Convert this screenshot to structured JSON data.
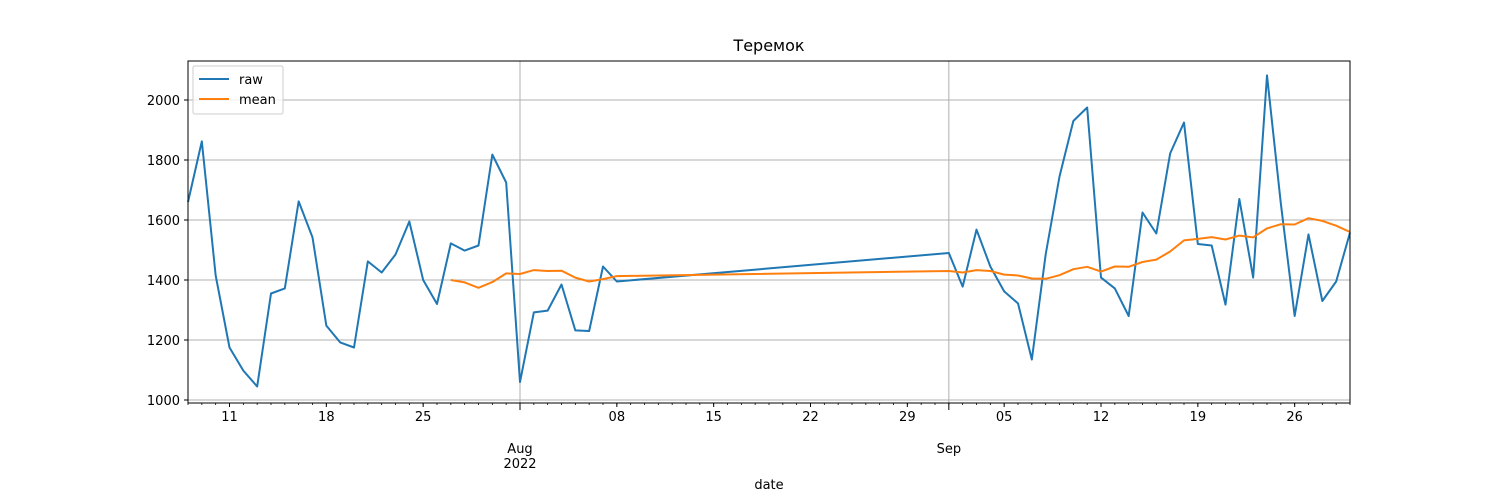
{
  "chart_data": {
    "type": "line",
    "title": "Теремок",
    "xlabel": "date",
    "ylabel": "",
    "ylim": [
      990,
      2130
    ],
    "xlim": [
      "2022-07-08",
      "2022-09-30"
    ],
    "grid": true,
    "legend_position": "top-left",
    "x_ticks": [
      {
        "date": "2022-07-11",
        "label": "11",
        "grid": false
      },
      {
        "date": "2022-07-18",
        "label": "18",
        "grid": false
      },
      {
        "date": "2022-07-25",
        "label": "25",
        "grid": false
      },
      {
        "date": "2022-08-01",
        "label": "Aug\n2022",
        "grid": true
      },
      {
        "date": "2022-08-08",
        "label": "08",
        "grid": false
      },
      {
        "date": "2022-08-15",
        "label": "15",
        "grid": false
      },
      {
        "date": "2022-08-22",
        "label": "22",
        "grid": false
      },
      {
        "date": "2022-08-29",
        "label": "29",
        "grid": false
      },
      {
        "date": "2022-09-01",
        "label": "Sep",
        "grid": true
      },
      {
        "date": "2022-09-05",
        "label": "05",
        "grid": false
      },
      {
        "date": "2022-09-12",
        "label": "12",
        "grid": false
      },
      {
        "date": "2022-09-19",
        "label": "19",
        "grid": false
      },
      {
        "date": "2022-09-26",
        "label": "26",
        "grid": false
      }
    ],
    "y_ticks": [
      1000,
      1200,
      1400,
      1600,
      1800,
      2000
    ],
    "series": [
      {
        "name": "raw",
        "color": "#1f77b4",
        "points": [
          [
            "2022-07-08",
            1660
          ],
          [
            "2022-07-09",
            1862
          ],
          [
            "2022-07-10",
            1415
          ],
          [
            "2022-07-11",
            1175
          ],
          [
            "2022-07-12",
            1098
          ],
          [
            "2022-07-13",
            1045
          ],
          [
            "2022-07-14",
            1355
          ],
          [
            "2022-07-15",
            1372
          ],
          [
            "2022-07-16",
            1662
          ],
          [
            "2022-07-17",
            1542
          ],
          [
            "2022-07-18",
            1248
          ],
          [
            "2022-07-19",
            1192
          ],
          [
            "2022-07-20",
            1175
          ],
          [
            "2022-07-21",
            1462
          ],
          [
            "2022-07-22",
            1425
          ],
          [
            "2022-07-23",
            1485
          ],
          [
            "2022-07-24",
            1595
          ],
          [
            "2022-07-25",
            1400
          ],
          [
            "2022-07-26",
            1320
          ],
          [
            "2022-07-27",
            1522
          ],
          [
            "2022-07-28",
            1498
          ],
          [
            "2022-07-29",
            1515
          ],
          [
            "2022-07-30",
            1818
          ],
          [
            "2022-07-31",
            1725
          ],
          [
            "2022-08-01",
            1060
          ],
          [
            "2022-08-02",
            1292
          ],
          [
            "2022-08-03",
            1298
          ],
          [
            "2022-08-04",
            1385
          ],
          [
            "2022-08-05",
            1232
          ],
          [
            "2022-08-06",
            1230
          ],
          [
            "2022-08-07",
            1445
          ],
          [
            "2022-08-08",
            1395
          ],
          [
            "2022-09-01",
            1490
          ],
          [
            "2022-09-02",
            1378
          ],
          [
            "2022-09-03",
            1568
          ],
          [
            "2022-09-04",
            1445
          ],
          [
            "2022-09-05",
            1362
          ],
          [
            "2022-09-06",
            1322
          ],
          [
            "2022-09-07",
            1135
          ],
          [
            "2022-09-08",
            1485
          ],
          [
            "2022-09-09",
            1745
          ],
          [
            "2022-09-10",
            1930
          ],
          [
            "2022-09-11",
            1975
          ],
          [
            "2022-09-12",
            1408
          ],
          [
            "2022-09-13",
            1372
          ],
          [
            "2022-09-14",
            1280
          ],
          [
            "2022-09-15",
            1625
          ],
          [
            "2022-09-16",
            1555
          ],
          [
            "2022-09-17",
            1822
          ],
          [
            "2022-09-18",
            1925
          ],
          [
            "2022-09-19",
            1520
          ],
          [
            "2022-09-20",
            1515
          ],
          [
            "2022-09-21",
            1318
          ],
          [
            "2022-09-22",
            1670
          ],
          [
            "2022-09-23",
            1408
          ],
          [
            "2022-09-24",
            2082
          ],
          [
            "2022-09-25",
            1655
          ],
          [
            "2022-09-26",
            1280
          ],
          [
            "2022-09-27",
            1552
          ],
          [
            "2022-09-28",
            1330
          ],
          [
            "2022-09-29",
            1395
          ],
          [
            "2022-09-30",
            1558
          ]
        ]
      },
      {
        "name": "mean",
        "color": "#ff7f0e",
        "points": [
          [
            "2022-07-27",
            1400
          ],
          [
            "2022-07-28",
            1392
          ],
          [
            "2022-07-29",
            1374
          ],
          [
            "2022-07-30",
            1393
          ],
          [
            "2022-07-31",
            1422
          ],
          [
            "2022-08-01",
            1420
          ],
          [
            "2022-08-02",
            1433
          ],
          [
            "2022-08-03",
            1430
          ],
          [
            "2022-08-04",
            1431
          ],
          [
            "2022-08-05",
            1408
          ],
          [
            "2022-08-06",
            1395
          ],
          [
            "2022-08-07",
            1403
          ],
          [
            "2022-08-08",
            1413
          ],
          [
            "2022-09-01",
            1430
          ],
          [
            "2022-09-02",
            1425
          ],
          [
            "2022-09-03",
            1433
          ],
          [
            "2022-09-04",
            1430
          ],
          [
            "2022-09-05",
            1418
          ],
          [
            "2022-09-06",
            1415
          ],
          [
            "2022-09-07",
            1405
          ],
          [
            "2022-09-08",
            1404
          ],
          [
            "2022-09-09",
            1416
          ],
          [
            "2022-09-10",
            1436
          ],
          [
            "2022-09-11",
            1444
          ],
          [
            "2022-09-12",
            1428
          ],
          [
            "2022-09-13",
            1445
          ],
          [
            "2022-09-14",
            1444
          ],
          [
            "2022-09-15",
            1460
          ],
          [
            "2022-09-16",
            1468
          ],
          [
            "2022-09-17",
            1495
          ],
          [
            "2022-09-18",
            1532
          ],
          [
            "2022-09-19",
            1537
          ],
          [
            "2022-09-20",
            1543
          ],
          [
            "2022-09-21",
            1535
          ],
          [
            "2022-09-22",
            1548
          ],
          [
            "2022-09-23",
            1542
          ],
          [
            "2022-09-24",
            1572
          ],
          [
            "2022-09-25",
            1586
          ],
          [
            "2022-09-26",
            1585
          ],
          [
            "2022-09-27",
            1606
          ],
          [
            "2022-09-28",
            1597
          ],
          [
            "2022-09-29",
            1581
          ],
          [
            "2022-09-30",
            1560
          ]
        ]
      }
    ]
  }
}
